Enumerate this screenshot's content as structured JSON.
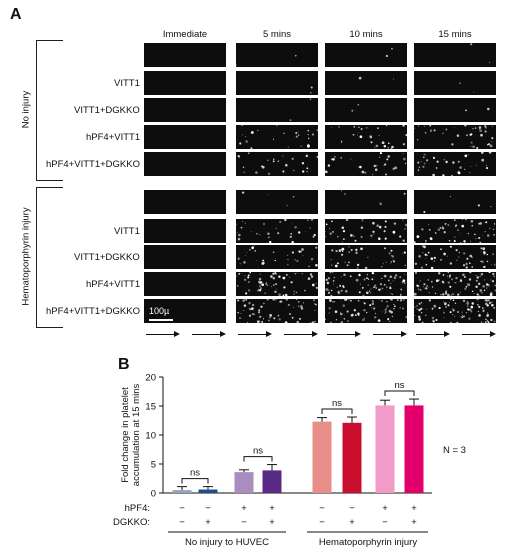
{
  "panelA": {
    "letter": "A",
    "timepoints": [
      "Immediate",
      "5 mins",
      "10 mins",
      "15 mins"
    ],
    "groups": [
      {
        "name": "No injury",
        "rows": [
          "",
          "VITT1",
          "VITT1+DGKKO",
          "hPF4+VITT1",
          "hPF4+VITT1+DGKKO"
        ]
      },
      {
        "name": "Hematoporphyrin injury",
        "rows": [
          "",
          "VITT1",
          "VITT1+DGKKO",
          "hPF4+VITT1",
          "hPF4+VITT1+DGKKO"
        ]
      }
    ],
    "scalebar": "100µ"
  },
  "panelB": {
    "letter": "B",
    "n_label": "N = 3",
    "row_labels": {
      "hpf4": "hPF4:",
      "dgkko": "DGKKO:"
    },
    "hpf4_signs": [
      "−",
      "−",
      "+",
      "+",
      "−",
      "−",
      "+",
      "+"
    ],
    "dgkko_signs": [
      "−",
      "+",
      "−",
      "+",
      "−",
      "+",
      "−",
      "+"
    ],
    "group_labels": [
      "No injury to HUVEC",
      "Hematoporphyrin injury"
    ],
    "sig_labels": [
      "ns",
      "ns",
      "ns",
      "ns"
    ]
  },
  "chart_data": {
    "type": "bar",
    "ylabel": "Fold change in platelet accumulation at 15 mins",
    "ylim": [
      0,
      20
    ],
    "yticks": [
      0,
      5,
      10,
      15,
      20
    ],
    "values": [
      0.5,
      0.6,
      3.6,
      3.9,
      12.3,
      12.1,
      15.1,
      15.1
    ],
    "errors": [
      0.6,
      0.5,
      0.4,
      1.0,
      0.7,
      1.0,
      0.9,
      1.1
    ],
    "colors": [
      "#8fa6bf",
      "#1f4e8c",
      "#a98cc0",
      "#5b2a86",
      "#e88e89",
      "#c8102e",
      "#f29ac8",
      "#e3006d"
    ],
    "comparisons": [
      [
        0,
        1
      ],
      [
        2,
        3
      ],
      [
        4,
        5
      ],
      [
        6,
        7
      ]
    ]
  }
}
